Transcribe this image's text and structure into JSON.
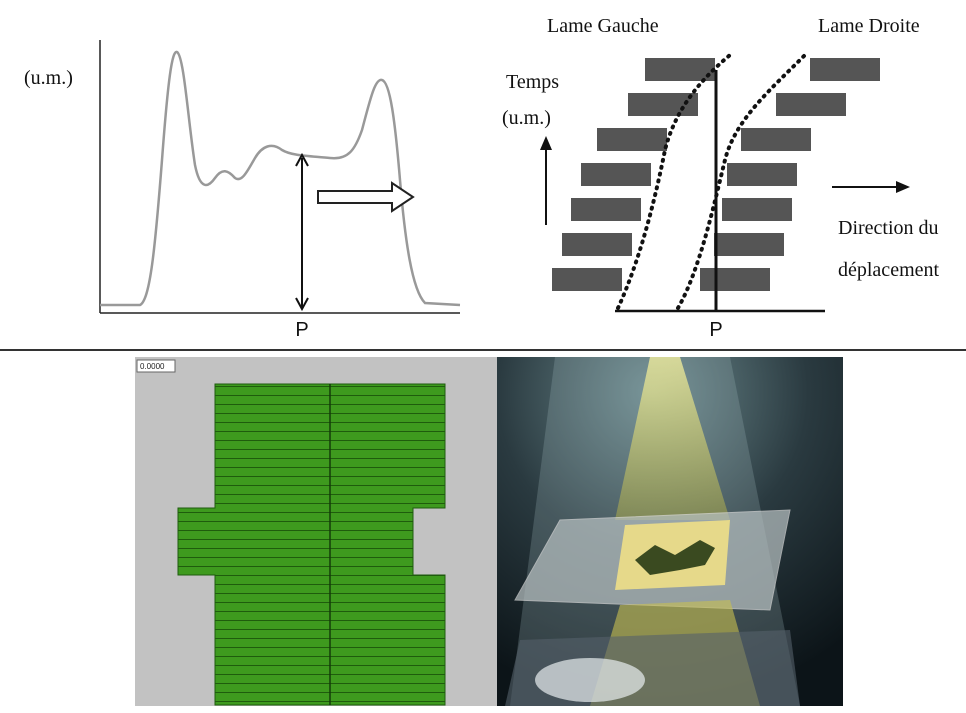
{
  "profile": {
    "y_label": "(u.m.)",
    "position_label": "P"
  },
  "leaves": {
    "left_title": "Lame Gauche",
    "right_title": "Lame Droite",
    "time_label": "Temps",
    "time_unit": "(u.m.)",
    "direction_line1": "Direction du",
    "direction_line2": "déplacement",
    "position_label": "P"
  },
  "simulation": {
    "counter": "0.0000"
  }
}
